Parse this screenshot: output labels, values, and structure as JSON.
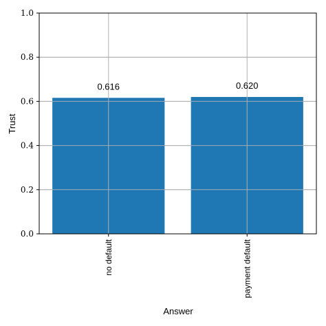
{
  "chart_data": {
    "type": "bar",
    "categories": [
      "no default",
      "payment default"
    ],
    "values": [
      0.616,
      0.62
    ],
    "data_labels": [
      "0.616",
      "0.620"
    ],
    "xlabel": "Answer",
    "ylabel": "Trust",
    "ylim": [
      0,
      1.0
    ],
    "yticks": [
      "0.0",
      "0.2",
      "0.4",
      "0.6",
      "0.8",
      "1.0"
    ],
    "grid": true,
    "bar_color": "#1f77b4"
  }
}
